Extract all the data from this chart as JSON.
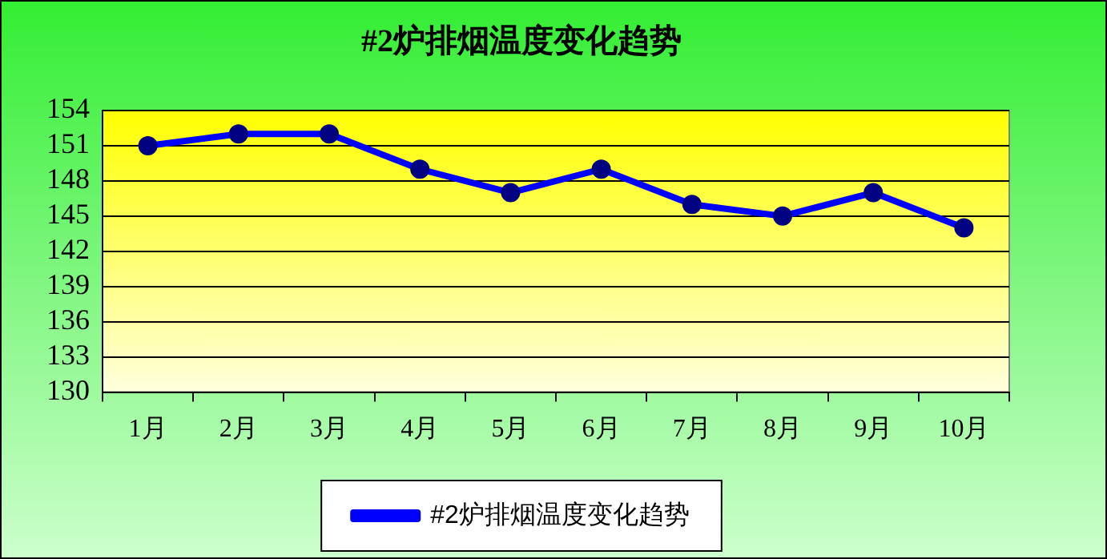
{
  "chart_data": {
    "type": "line",
    "title": "#2炉排烟温度变化趋势",
    "categories": [
      "1月",
      "2月",
      "3月",
      "4月",
      "5月",
      "6月",
      "7月",
      "8月",
      "9月",
      "10月"
    ],
    "series": [
      {
        "name": "#2炉排烟温度变化趋势",
        "color": "#0000ff",
        "values": [
          151,
          152,
          152,
          149,
          147,
          149,
          146,
          145,
          147,
          144
        ]
      }
    ],
    "ylim": [
      130,
      154
    ],
    "yticks": [
      130,
      133,
      136,
      139,
      142,
      145,
      148,
      151,
      154
    ],
    "grid": "y",
    "legend": "bottom",
    "marker": "circle",
    "line_style": "solid"
  }
}
